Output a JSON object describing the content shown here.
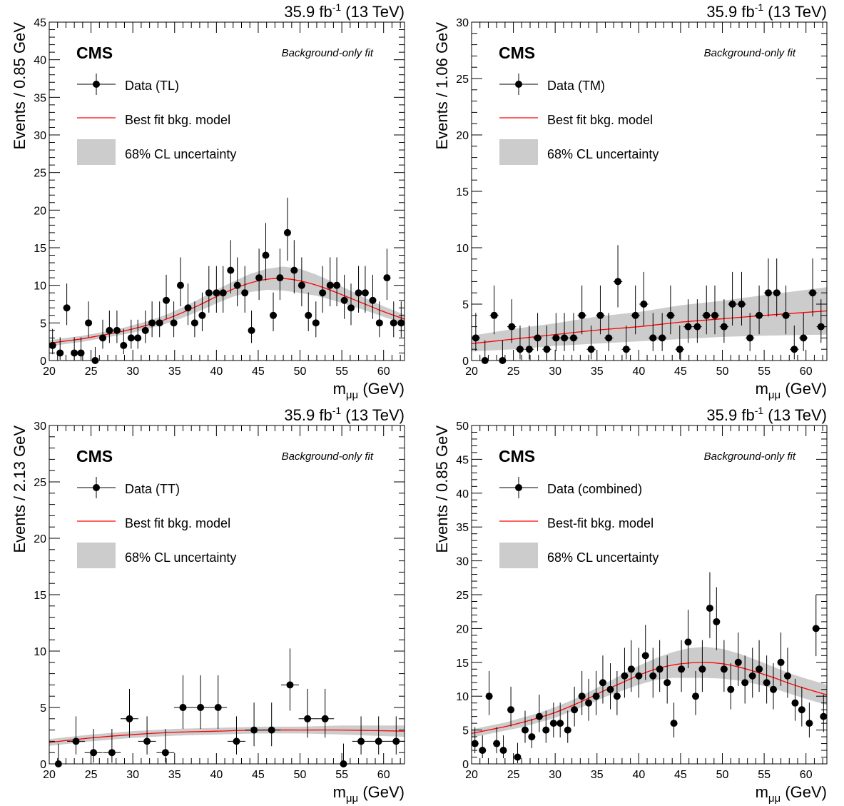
{
  "chart_data": [
    {
      "type": "scatter",
      "lumi_label": "35.9 fb",
      "lumi_exp": "-1",
      "energy_label": " (13 TeV)",
      "experiment": "CMS",
      "fit_label": "Background-only fit",
      "xlabel_main": "m",
      "xlabel_sub": "μμ",
      "xlabel_unit": " (GeV)",
      "ylabel": "Events / 0.85 GeV",
      "xlim": [
        20,
        62.5
      ],
      "ylim": [
        0,
        45
      ],
      "xticks": [
        20,
        25,
        30,
        35,
        40,
        45,
        50,
        55,
        60
      ],
      "yticks": [
        0,
        5,
        10,
        15,
        20,
        25,
        30,
        35,
        40,
        45
      ],
      "bin_halfwidth": 0.425,
      "legend": {
        "data": "Data (TL)",
        "fit": "Best fit bkg. model",
        "band": "68% CL uncertainty"
      },
      "colors": {
        "fit": "#ff0000",
        "band": "#cccccc",
        "data": "#000000"
      },
      "series": [
        {
          "name": "Data (TL)",
          "x": [
            20.4,
            21.3,
            22.1,
            23.0,
            23.8,
            24.7,
            25.5,
            26.4,
            27.2,
            28.1,
            28.9,
            29.8,
            30.6,
            31.5,
            32.3,
            33.2,
            34.0,
            34.9,
            35.7,
            36.6,
            37.4,
            38.3,
            39.1,
            40.0,
            40.8,
            41.7,
            42.5,
            43.4,
            44.2,
            45.1,
            45.9,
            46.8,
            47.6,
            48.5,
            49.3,
            50.2,
            51.0,
            51.9,
            52.7,
            53.6,
            54.4,
            55.3,
            56.1,
            57.0,
            57.8,
            58.7,
            59.5,
            60.4,
            61.2,
            62.1
          ],
          "y": [
            2,
            1,
            7,
            1,
            1,
            5,
            0,
            3,
            4,
            4,
            2,
            3,
            3,
            4,
            5,
            5,
            8,
            5,
            10,
            7,
            5,
            6,
            9,
            9,
            9,
            12,
            10,
            9,
            4,
            11,
            14,
            6,
            11,
            17,
            12,
            10,
            6,
            5,
            9,
            10,
            10,
            8,
            7,
            9,
            9,
            8,
            5,
            11,
            5,
            5
          ]
        },
        {
          "name": "Best fit bkg. model",
          "x": [
            20,
            22,
            24,
            26,
            28,
            30,
            32,
            34,
            36,
            38,
            40,
            42,
            44,
            46,
            48,
            50,
            52,
            54,
            56,
            58,
            60,
            62.5
          ],
          "y": [
            2.3,
            2.6,
            2.9,
            3.3,
            3.7,
            4.2,
            4.8,
            5.5,
            6.4,
            7.4,
            8.5,
            9.5,
            10.3,
            10.8,
            10.9,
            10.6,
            10.0,
            9.2,
            8.3,
            7.4,
            6.5,
            5.5
          ]
        }
      ],
      "band": {
        "halfwidth": [
          0.4,
          0.4,
          0.4,
          0.4,
          0.4,
          0.5,
          0.5,
          0.6,
          0.7,
          0.8,
          0.9,
          1.0,
          1.2,
          1.4,
          1.6,
          1.6,
          1.4,
          1.2,
          1.0,
          0.8,
          0.7,
          0.6
        ]
      }
    },
    {
      "type": "scatter",
      "lumi_label": "35.9 fb",
      "lumi_exp": "-1",
      "energy_label": " (13 TeV)",
      "experiment": "CMS",
      "fit_label": "Background-only fit",
      "xlabel_main": "m",
      "xlabel_sub": "μμ",
      "xlabel_unit": " (GeV)",
      "ylabel": "Events / 1.06 GeV",
      "xlim": [
        20,
        62.5
      ],
      "ylim": [
        0,
        30
      ],
      "xticks": [
        20,
        25,
        30,
        35,
        40,
        45,
        50,
        55,
        60
      ],
      "yticks": [
        0,
        5,
        10,
        15,
        20,
        25,
        30
      ],
      "bin_halfwidth": 0.53,
      "legend": {
        "data": "Data (TM)",
        "fit": "Best fit bkg. model",
        "band": "68% CL uncertainty"
      },
      "colors": {
        "fit": "#ff0000",
        "band": "#cccccc",
        "data": "#000000"
      },
      "series": [
        {
          "name": "Data (TM)",
          "x": [
            20.5,
            21.6,
            22.7,
            23.7,
            24.8,
            25.8,
            26.9,
            27.9,
            29.0,
            30.1,
            31.1,
            32.2,
            33.2,
            34.3,
            35.4,
            36.4,
            37.5,
            38.5,
            39.6,
            40.6,
            41.7,
            42.8,
            43.8,
            44.9,
            45.9,
            47.0,
            48.1,
            49.1,
            50.2,
            51.2,
            52.3,
            53.3,
            54.4,
            55.5,
            56.5,
            57.6,
            58.6,
            59.7,
            60.8,
            61.8
          ],
          "y": [
            2,
            0,
            4,
            0,
            3,
            1,
            1,
            2,
            1,
            2,
            2,
            2,
            4,
            1,
            4,
            2,
            7,
            1,
            4,
            5,
            2,
            2,
            4,
            1,
            3,
            3,
            4,
            4,
            3,
            5,
            5,
            2,
            4,
            6,
            6,
            4,
            1,
            2,
            6,
            3
          ]
        },
        {
          "name": "Best fit bkg. model",
          "x": [
            20,
            25,
            30,
            35,
            40,
            45,
            50,
            55,
            62.5
          ],
          "y": [
            1.5,
            1.9,
            2.3,
            2.7,
            3.0,
            3.4,
            3.7,
            4.0,
            4.4
          ]
        }
      ],
      "band": {
        "halfwidth": [
          0.7,
          0.9,
          1.0,
          1.2,
          1.3,
          1.5,
          1.6,
          1.8,
          2.1
        ]
      }
    },
    {
      "type": "scatter",
      "lumi_label": "35.9 fb",
      "lumi_exp": "-1",
      "energy_label": " (13 TeV)",
      "experiment": "CMS",
      "fit_label": "Background-only fit",
      "xlabel_main": "m",
      "xlabel_sub": "μμ",
      "xlabel_unit": " (GeV)",
      "ylabel": "Events / 2.13 GeV",
      "xlim": [
        20,
        62.5
      ],
      "ylim": [
        0,
        30
      ],
      "xticks": [
        20,
        25,
        30,
        35,
        40,
        45,
        50,
        55,
        60
      ],
      "yticks": [
        0,
        5,
        10,
        15,
        20,
        25,
        30
      ],
      "bin_halfwidth": 1.065,
      "legend": {
        "data": "Data (TT)",
        "fit": "Best fit bkg. model",
        "band": "68% CL uncertainty"
      },
      "colors": {
        "fit": "#ff0000",
        "band": "#cccccc",
        "data": "#000000"
      },
      "series": [
        {
          "name": "Data (TT)",
          "x": [
            21.1,
            23.2,
            25.3,
            27.5,
            29.6,
            31.7,
            33.9,
            36.0,
            38.1,
            40.2,
            42.4,
            44.5,
            46.6,
            48.8,
            50.9,
            53.0,
            55.2,
            57.3,
            59.4,
            61.5
          ],
          "y": [
            0,
            2,
            1,
            1,
            4,
            2,
            1,
            5,
            5,
            5,
            2,
            3,
            3,
            7,
            4,
            4,
            0,
            2,
            2,
            2
          ]
        },
        {
          "name": "Best fit bkg. model",
          "x": [
            20,
            25,
            30,
            35,
            40,
            45,
            50,
            55,
            62.5
          ],
          "y": [
            1.9,
            2.3,
            2.6,
            2.8,
            2.9,
            3.0,
            3.0,
            3.0,
            2.9
          ]
        }
      ],
      "band": {
        "halfwidth": [
          0.3,
          0.3,
          0.3,
          0.3,
          0.3,
          0.3,
          0.3,
          0.4,
          0.5
        ]
      }
    },
    {
      "type": "scatter",
      "lumi_label": "35.9 fb",
      "lumi_exp": "-1",
      "energy_label": " (13 TeV)",
      "experiment": "CMS",
      "fit_label": "Background-only fit",
      "xlabel_main": "m",
      "xlabel_sub": "μμ",
      "xlabel_unit": " (GeV)",
      "ylabel": "Events / 0.85 GeV",
      "xlim": [
        20,
        62.5
      ],
      "ylim": [
        0,
        50
      ],
      "xticks": [
        20,
        25,
        30,
        35,
        40,
        45,
        50,
        55,
        60
      ],
      "yticks": [
        0,
        5,
        10,
        15,
        20,
        25,
        30,
        35,
        40,
        45,
        50
      ],
      "bin_halfwidth": 0.425,
      "legend": {
        "data": "Data (combined)",
        "fit": "Best-fit bkg. model",
        "band": "68% CL uncertainty"
      },
      "colors": {
        "fit": "#ff0000",
        "band": "#cccccc",
        "data": "#000000"
      },
      "series": [
        {
          "name": "Data (combined)",
          "x": [
            20.4,
            21.3,
            22.1,
            23.0,
            23.8,
            24.7,
            25.5,
            26.4,
            27.2,
            28.1,
            28.9,
            29.8,
            30.6,
            31.5,
            32.3,
            33.2,
            34.0,
            34.9,
            35.7,
            36.6,
            37.4,
            38.3,
            39.1,
            40.0,
            40.8,
            41.7,
            42.5,
            43.4,
            44.2,
            45.1,
            45.9,
            46.8,
            47.6,
            48.5,
            49.3,
            50.2,
            51.0,
            51.9,
            52.7,
            53.6,
            54.4,
            55.3,
            56.1,
            57.0,
            57.8,
            58.7,
            59.5,
            60.4,
            61.2,
            62.1
          ],
          "y": [
            3,
            2,
            10,
            3,
            2,
            8,
            1,
            5,
            4,
            7,
            5,
            6,
            6,
            5,
            8,
            10,
            9,
            10,
            12,
            11,
            10,
            13,
            14,
            13,
            16,
            13,
            14,
            12,
            6,
            14,
            18,
            10,
            14,
            23,
            21,
            14,
            11,
            15,
            12,
            13,
            14,
            12,
            11,
            15,
            13,
            9,
            8,
            6,
            20,
            7
          ]
        },
        {
          "name": "Best-fit bkg. model",
          "x": [
            20,
            22,
            24,
            26,
            28,
            30,
            32,
            34,
            36,
            38,
            40,
            42,
            44,
            46,
            48,
            50,
            52,
            54,
            56,
            58,
            60,
            62.5
          ],
          "y": [
            4.5,
            5.0,
            5.5,
            6.1,
            6.8,
            7.6,
            8.6,
            9.7,
            10.9,
            12.0,
            13.1,
            14.0,
            14.6,
            14.9,
            15.0,
            14.8,
            14.3,
            13.6,
            12.8,
            11.9,
            11.1,
            10.2
          ]
        }
      ],
      "band": {
        "halfwidth": [
          0.6,
          0.6,
          0.6,
          0.7,
          0.7,
          0.8,
          0.8,
          0.9,
          1.0,
          1.2,
          1.4,
          1.6,
          1.9,
          2.2,
          2.3,
          2.2,
          2.0,
          1.8,
          1.6,
          1.5,
          1.5,
          1.5
        ]
      }
    }
  ]
}
